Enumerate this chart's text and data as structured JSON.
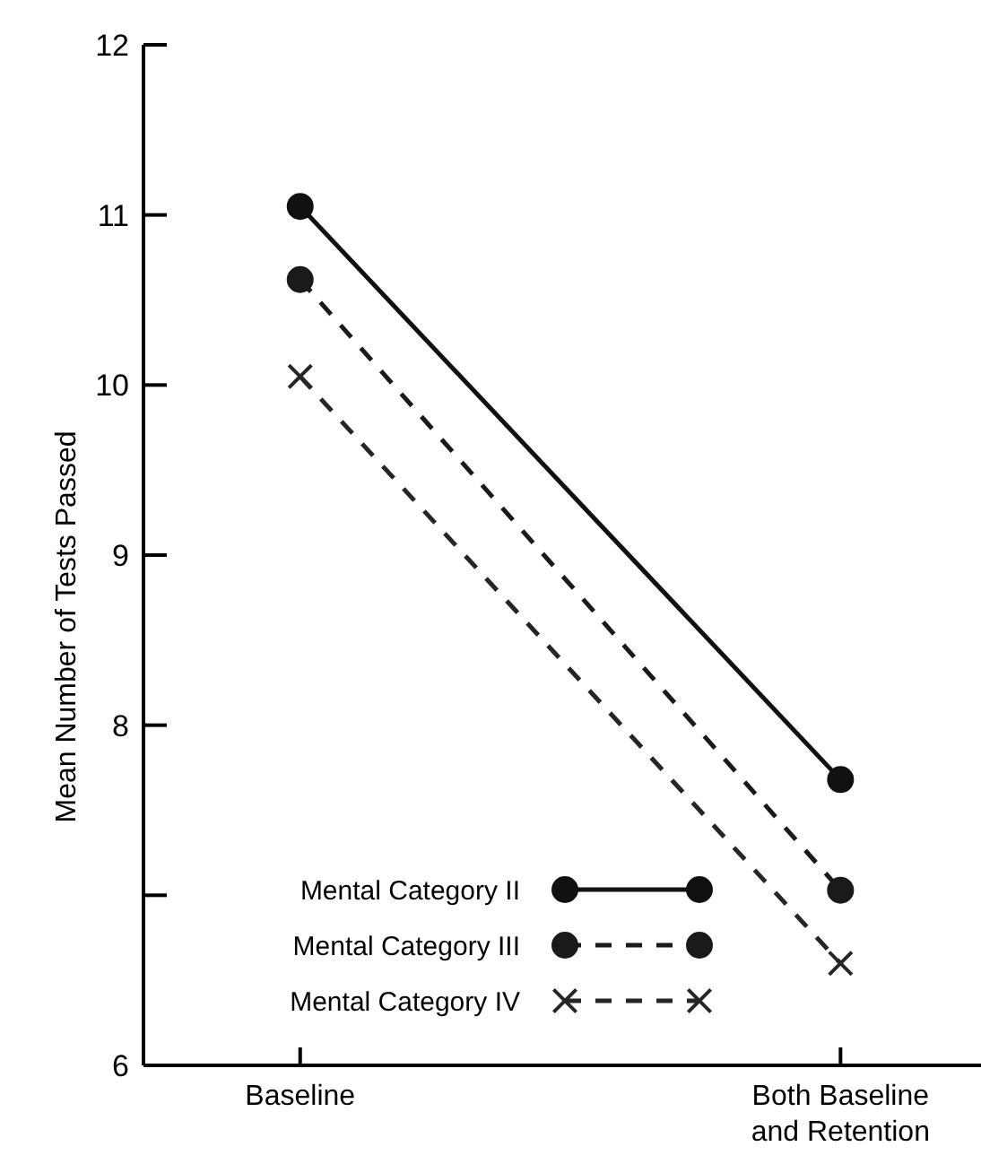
{
  "chart_data": {
    "type": "line",
    "ylabel": "Mean Number of Tests Passed",
    "categories": [
      "Baseline",
      "Both Baseline\nand Retention"
    ],
    "series": [
      {
        "name": "Mental Category II",
        "color": "#111111",
        "values": [
          11.05,
          7.68
        ],
        "marker": "circle",
        "line_style": "solid"
      },
      {
        "name": "Mental Category III",
        "color": "#1a1a1a",
        "values": [
          10.62,
          7.03
        ],
        "marker": "circle",
        "line_style": "dashed"
      },
      {
        "name": "Mental Category IV",
        "color": "#262626",
        "values": [
          10.05,
          6.6
        ],
        "marker": "cross",
        "line_style": "dashed"
      }
    ],
    "ylim": [
      6,
      12
    ],
    "yticks": [
      6,
      {
        "value": 7,
        "label": null
      },
      8,
      9,
      10,
      11,
      12
    ],
    "grid": false,
    "legend": "bottom left"
  }
}
